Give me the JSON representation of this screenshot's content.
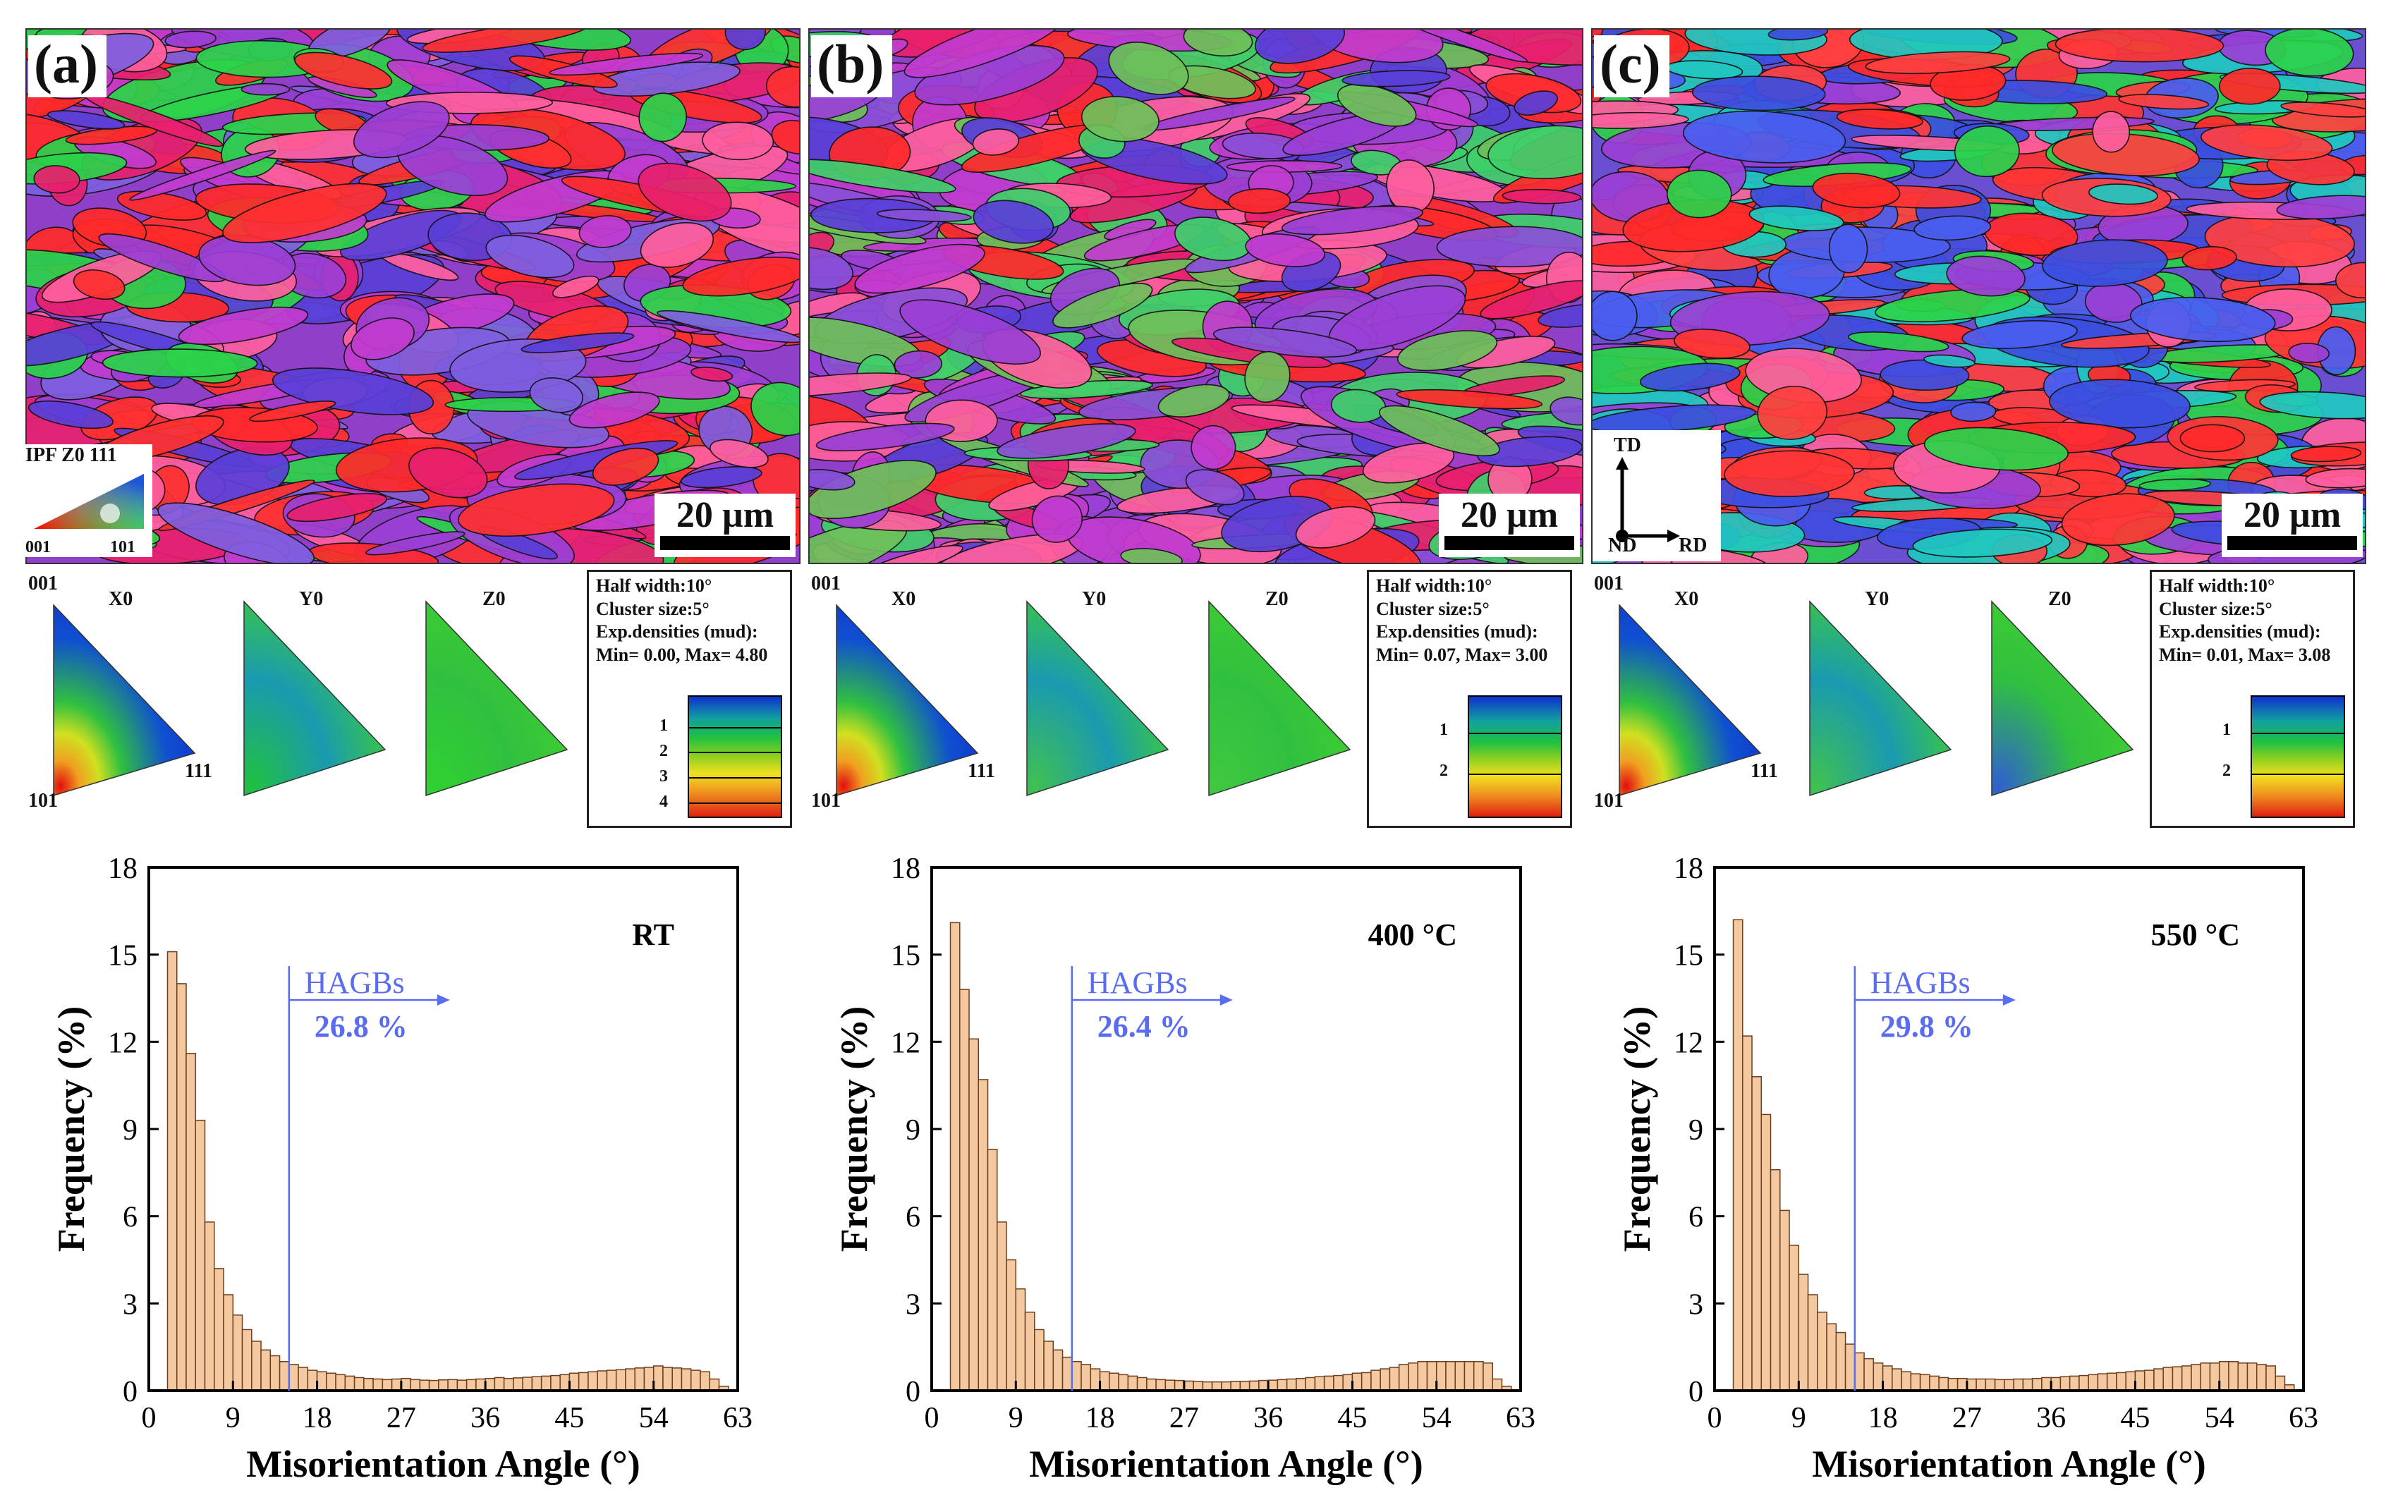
{
  "panels": [
    {
      "letter": "(a)",
      "scale": "20 µm"
    },
    {
      "letter": "(b)",
      "scale": "20 µm"
    },
    {
      "letter": "(c)",
      "scale": "20 µm"
    }
  ],
  "ipf_legend": {
    "title": "IPF Z0 111",
    "bottom_left": "001",
    "bottom_right": "101"
  },
  "axes_legend": {
    "top": "TD",
    "bottom_left": "ND",
    "bottom_right": "RD"
  },
  "pole_figures": {
    "labels": [
      "X0",
      "Y0",
      "Z0"
    ],
    "corner_top": "001",
    "corner_bottom": "101",
    "corner_right": "111"
  },
  "density_boxes": [
    {
      "half_width": "Half width:10°",
      "cluster": "Cluster size:5°",
      "exp": "Exp.densities (mud):",
      "minmax": "Min= 0.00, Max= 4.80",
      "ticks": [
        "1",
        "2",
        "3",
        "4"
      ]
    },
    {
      "half_width": "Half width:10°",
      "cluster": "Cluster size:5°",
      "exp": "Exp.densities (mud):",
      "minmax": "Min= 0.07, Max= 3.00",
      "ticks": [
        "1",
        "2"
      ]
    },
    {
      "half_width": "Half width:10°",
      "cluster": "Cluster size:5°",
      "exp": "Exp.densities (mud):",
      "minmax": "Min= 0.01, Max= 3.08",
      "ticks": [
        "1",
        "2"
      ]
    }
  ],
  "colors": {
    "bar_fill": "#f5c9a0",
    "bar_stroke": "#6b3f1f",
    "hagb_line": "#5a6cf0"
  },
  "chart_data": [
    {
      "type": "bar",
      "title": "RT",
      "xlabel": "Misorientation Angle (°)",
      "ylabel": "Frequency (%)",
      "xlim": [
        0,
        63
      ],
      "ylim": [
        0,
        18
      ],
      "xticks": [
        "0",
        "9",
        "18",
        "27",
        "36",
        "45",
        "54",
        "63"
      ],
      "yticks": [
        "0",
        "3",
        "6",
        "9",
        "12",
        "15",
        "18"
      ],
      "hagb_angle": 15,
      "hagb_label": "HAGBs",
      "hagb_value": "26.8 %",
      "x": [
        2.5,
        3.5,
        4.5,
        5.5,
        6.5,
        7.5,
        8.5,
        9.5,
        10.5,
        11.5,
        12.5,
        13.5,
        14.5,
        15.5,
        16.5,
        17.5,
        18.5,
        19.5,
        20.5,
        21.5,
        22.5,
        23.5,
        24.5,
        25.5,
        26.5,
        27.5,
        28.5,
        29.5,
        30.5,
        31.5,
        32.5,
        33.5,
        34.5,
        35.5,
        36.5,
        37.5,
        38.5,
        39.5,
        40.5,
        41.5,
        42.5,
        43.5,
        44.5,
        45.5,
        46.5,
        47.5,
        48.5,
        49.5,
        50.5,
        51.5,
        52.5,
        53.5,
        54.5,
        55.5,
        56.5,
        57.5,
        58.5,
        59.5,
        60.5,
        61.5
      ],
      "values": [
        15.1,
        14.0,
        11.6,
        9.3,
        5.8,
        4.2,
        3.3,
        2.6,
        2.1,
        1.7,
        1.4,
        1.2,
        1.0,
        0.9,
        0.8,
        0.7,
        0.65,
        0.6,
        0.55,
        0.5,
        0.45,
        0.42,
        0.4,
        0.38,
        0.4,
        0.42,
        0.38,
        0.36,
        0.35,
        0.37,
        0.38,
        0.36,
        0.38,
        0.4,
        0.42,
        0.45,
        0.42,
        0.44,
        0.46,
        0.48,
        0.5,
        0.52,
        0.55,
        0.6,
        0.62,
        0.65,
        0.68,
        0.7,
        0.72,
        0.75,
        0.78,
        0.8,
        0.85,
        0.8,
        0.78,
        0.75,
        0.7,
        0.65,
        0.4,
        0.15
      ]
    },
    {
      "type": "bar",
      "title": "400 °C",
      "xlabel": "Misorientation Angle (°)",
      "ylabel": "Frequency (%)",
      "xlim": [
        0,
        63
      ],
      "ylim": [
        0,
        18
      ],
      "xticks": [
        "0",
        "9",
        "18",
        "27",
        "36",
        "45",
        "54",
        "63"
      ],
      "yticks": [
        "0",
        "3",
        "6",
        "9",
        "12",
        "15",
        "18"
      ],
      "hagb_angle": 15,
      "hagb_label": "HAGBs",
      "hagb_value": "26.4 %",
      "x": [
        2.5,
        3.5,
        4.5,
        5.5,
        6.5,
        7.5,
        8.5,
        9.5,
        10.5,
        11.5,
        12.5,
        13.5,
        14.5,
        15.5,
        16.5,
        17.5,
        18.5,
        19.5,
        20.5,
        21.5,
        22.5,
        23.5,
        24.5,
        25.5,
        26.5,
        27.5,
        28.5,
        29.5,
        30.5,
        31.5,
        32.5,
        33.5,
        34.5,
        35.5,
        36.5,
        37.5,
        38.5,
        39.5,
        40.5,
        41.5,
        42.5,
        43.5,
        44.5,
        45.5,
        46.5,
        47.5,
        48.5,
        49.5,
        50.5,
        51.5,
        52.5,
        53.5,
        54.5,
        55.5,
        56.5,
        57.5,
        58.5,
        59.5,
        60.5,
        61.5
      ],
      "values": [
        16.1,
        13.8,
        12.1,
        10.7,
        8.3,
        5.8,
        4.5,
        3.5,
        2.7,
        2.1,
        1.7,
        1.4,
        1.15,
        1.0,
        0.9,
        0.75,
        0.65,
        0.6,
        0.55,
        0.5,
        0.45,
        0.4,
        0.38,
        0.36,
        0.35,
        0.33,
        0.32,
        0.3,
        0.3,
        0.3,
        0.32,
        0.32,
        0.33,
        0.35,
        0.36,
        0.38,
        0.4,
        0.42,
        0.45,
        0.48,
        0.5,
        0.52,
        0.55,
        0.6,
        0.62,
        0.7,
        0.75,
        0.8,
        0.9,
        0.95,
        1.0,
        1.0,
        1.0,
        1.0,
        1.0,
        1.0,
        1.0,
        0.95,
        0.4,
        0.15
      ]
    },
    {
      "type": "bar",
      "title": "550 °C",
      "xlabel": "Misorientation Angle (°)",
      "ylabel": "Frequency (%)",
      "xlim": [
        0,
        63
      ],
      "ylim": [
        0,
        18
      ],
      "xticks": [
        "0",
        "9",
        "18",
        "27",
        "36",
        "45",
        "54",
        "63"
      ],
      "yticks": [
        "0",
        "3",
        "6",
        "9",
        "12",
        "15",
        "18"
      ],
      "hagb_angle": 15,
      "hagb_label": "HAGBs",
      "hagb_value": "29.8 %",
      "x": [
        2.5,
        3.5,
        4.5,
        5.5,
        6.5,
        7.5,
        8.5,
        9.5,
        10.5,
        11.5,
        12.5,
        13.5,
        14.5,
        15.5,
        16.5,
        17.5,
        18.5,
        19.5,
        20.5,
        21.5,
        22.5,
        23.5,
        24.5,
        25.5,
        26.5,
        27.5,
        28.5,
        29.5,
        30.5,
        31.5,
        32.5,
        33.5,
        34.5,
        35.5,
        36.5,
        37.5,
        38.5,
        39.5,
        40.5,
        41.5,
        42.5,
        43.5,
        44.5,
        45.5,
        46.5,
        47.5,
        48.5,
        49.5,
        50.5,
        51.5,
        52.5,
        53.5,
        54.5,
        55.5,
        56.5,
        57.5,
        58.5,
        59.5,
        60.5,
        61.5
      ],
      "values": [
        16.2,
        12.2,
        10.8,
        9.5,
        7.6,
        6.2,
        5.0,
        4.0,
        3.3,
        2.7,
        2.3,
        2.0,
        1.6,
        1.3,
        1.1,
        0.95,
        0.85,
        0.75,
        0.65,
        0.58,
        0.55,
        0.5,
        0.45,
        0.42,
        0.42,
        0.4,
        0.4,
        0.4,
        0.38,
        0.38,
        0.4,
        0.4,
        0.42,
        0.45,
        0.45,
        0.48,
        0.5,
        0.52,
        0.55,
        0.58,
        0.6,
        0.62,
        0.65,
        0.68,
        0.7,
        0.75,
        0.8,
        0.82,
        0.85,
        0.9,
        0.95,
        0.95,
        1.0,
        1.0,
        0.95,
        0.95,
        0.9,
        0.85,
        0.5,
        0.2
      ]
    }
  ]
}
